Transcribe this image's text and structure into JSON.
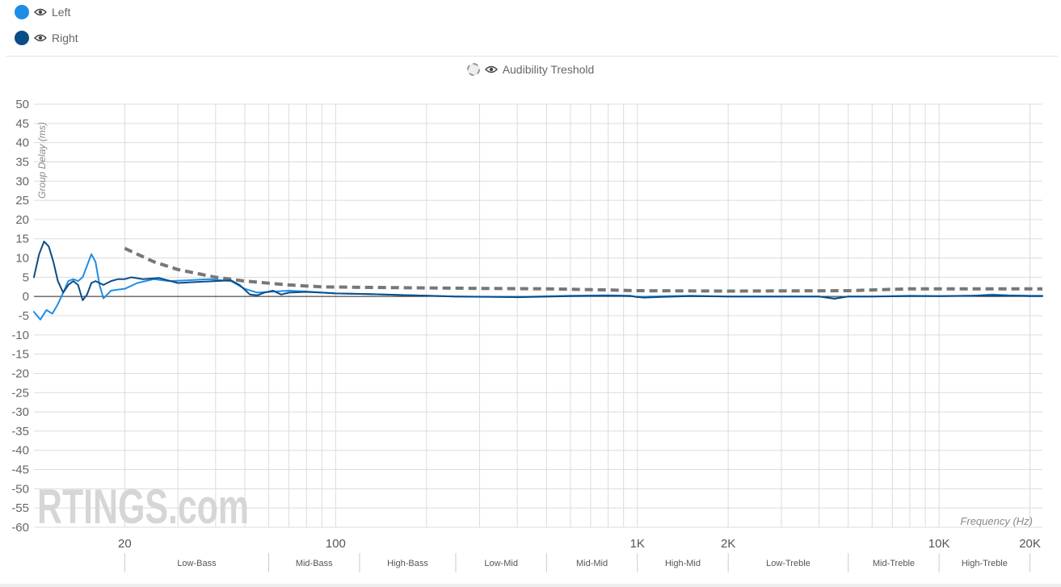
{
  "legend": {
    "items": [
      {
        "label": "Left",
        "color": "#1e8de6"
      },
      {
        "label": "Right",
        "color": "#0b4d86"
      }
    ],
    "threshold_label": "Audibility Treshold",
    "threshold_color": "#777777"
  },
  "watermark": "RTINGS.com",
  "chart_data": {
    "type": "line",
    "ylabel": "Group Delay (ms)",
    "xlabel": "Frequency (Hz)",
    "xscale": "log",
    "xlim": [
      10,
      22000
    ],
    "ylim": [
      -60,
      50
    ],
    "yticks": [
      50,
      45,
      40,
      35,
      30,
      25,
      20,
      15,
      10,
      5,
      0,
      -5,
      -10,
      -15,
      -20,
      -25,
      -30,
      -35,
      -40,
      -45,
      -50,
      -55,
      -60
    ],
    "xtick_labels": [
      {
        "label": "20",
        "value": 20
      },
      {
        "label": "100",
        "value": 100
      },
      {
        "label": "1K",
        "value": 1000
      },
      {
        "label": "2K",
        "value": 2000
      },
      {
        "label": "10K",
        "value": 10000
      },
      {
        "label": "20K",
        "value": 20000
      }
    ],
    "bands": [
      {
        "label": "Low-Bass",
        "from": 20,
        "to": 60
      },
      {
        "label": "Mid-Bass",
        "from": 60,
        "to": 120
      },
      {
        "label": "High-Bass",
        "from": 120,
        "to": 250
      },
      {
        "label": "Low-Mid",
        "from": 250,
        "to": 500
      },
      {
        "label": "Mid-Mid",
        "from": 500,
        "to": 1000
      },
      {
        "label": "High-Mid",
        "from": 1000,
        "to": 2000
      },
      {
        "label": "Low-Treble",
        "from": 2000,
        "to": 5000
      },
      {
        "label": "Mid-Treble",
        "from": 5000,
        "to": 10000
      },
      {
        "label": "High-Treble",
        "from": 10000,
        "to": 20000
      }
    ],
    "grid": true,
    "series": [
      {
        "name": "Left",
        "color": "#1e8de6",
        "points": [
          [
            10,
            -4
          ],
          [
            10.5,
            -6
          ],
          [
            11,
            -3.5
          ],
          [
            11.5,
            -4.5
          ],
          [
            12,
            -2
          ],
          [
            12.5,
            1
          ],
          [
            13,
            4
          ],
          [
            13.5,
            4.5
          ],
          [
            14,
            4
          ],
          [
            14.5,
            5
          ],
          [
            15,
            8
          ],
          [
            15.5,
            11
          ],
          [
            16,
            9
          ],
          [
            16.5,
            3
          ],
          [
            17,
            -0.5
          ],
          [
            17.5,
            0.5
          ],
          [
            18,
            1.5
          ],
          [
            19,
            1.8
          ],
          [
            20,
            2
          ],
          [
            22,
            3.5
          ],
          [
            25,
            4.5
          ],
          [
            28,
            4
          ],
          [
            32,
            4.2
          ],
          [
            38,
            4.5
          ],
          [
            45,
            4
          ],
          [
            50,
            2
          ],
          [
            55,
            1
          ],
          [
            60,
            1.2
          ],
          [
            70,
            1.5
          ],
          [
            80,
            1.3
          ],
          [
            90,
            1
          ],
          [
            100,
            0.8
          ],
          [
            130,
            0.6
          ],
          [
            180,
            0.3
          ],
          [
            250,
            0
          ],
          [
            400,
            -0.1
          ],
          [
            600,
            0.2
          ],
          [
            800,
            0.3
          ],
          [
            950,
            0.2
          ],
          [
            1000,
            -0.2
          ],
          [
            1100,
            0
          ],
          [
            1500,
            0.2
          ],
          [
            2000,
            0
          ],
          [
            3000,
            0
          ],
          [
            4000,
            0
          ],
          [
            4500,
            -0.5
          ],
          [
            5000,
            0
          ],
          [
            6000,
            0
          ],
          [
            8000,
            0.2
          ],
          [
            10000,
            0.1
          ],
          [
            13000,
            0.2
          ],
          [
            15000,
            0.5
          ],
          [
            17000,
            0.3
          ],
          [
            20000,
            0.2
          ],
          [
            22000,
            0.2
          ]
        ]
      },
      {
        "name": "Right",
        "color": "#0b4d86",
        "points": [
          [
            10,
            5
          ],
          [
            10.4,
            11
          ],
          [
            10.8,
            14.3
          ],
          [
            11.2,
            13
          ],
          [
            11.6,
            9
          ],
          [
            12,
            4
          ],
          [
            12.5,
            1
          ],
          [
            13,
            3
          ],
          [
            13.5,
            4
          ],
          [
            14,
            3
          ],
          [
            14.5,
            -1
          ],
          [
            15,
            0.5
          ],
          [
            15.5,
            3.5
          ],
          [
            16,
            4
          ],
          [
            16.5,
            3.5
          ],
          [
            17,
            3
          ],
          [
            18,
            4
          ],
          [
            19,
            4.5
          ],
          [
            20,
            4.5
          ],
          [
            21,
            5
          ],
          [
            23,
            4.5
          ],
          [
            26,
            4.8
          ],
          [
            30,
            3.5
          ],
          [
            35,
            3.8
          ],
          [
            40,
            4
          ],
          [
            45,
            4.2
          ],
          [
            48,
            3
          ],
          [
            52,
            0.5
          ],
          [
            55,
            0.3
          ],
          [
            58,
            1
          ],
          [
            62,
            1.5
          ],
          [
            66,
            0.5
          ],
          [
            70,
            1
          ],
          [
            80,
            1.2
          ],
          [
            90,
            1
          ],
          [
            100,
            0.8
          ],
          [
            130,
            0.6
          ],
          [
            180,
            0.3
          ],
          [
            250,
            0
          ],
          [
            400,
            -0.2
          ],
          [
            600,
            0.1
          ],
          [
            800,
            0.2
          ],
          [
            950,
            0.1
          ],
          [
            1050,
            -0.3
          ],
          [
            1200,
            -0.1
          ],
          [
            1500,
            0.1
          ],
          [
            2000,
            0
          ],
          [
            3000,
            0
          ],
          [
            4000,
            0
          ],
          [
            4500,
            -0.6
          ],
          [
            5000,
            0
          ],
          [
            6000,
            0
          ],
          [
            8000,
            0.1
          ],
          [
            10000,
            0.1
          ],
          [
            13000,
            0.2
          ],
          [
            15000,
            0.3
          ],
          [
            17000,
            0.2
          ],
          [
            20000,
            0.1
          ],
          [
            22000,
            0.1
          ]
        ]
      },
      {
        "name": "Audibility Treshold",
        "color": "#777777",
        "dashed": true,
        "points": [
          [
            20,
            12.5
          ],
          [
            25,
            9
          ],
          [
            30,
            7
          ],
          [
            40,
            5
          ],
          [
            50,
            4
          ],
          [
            70,
            3
          ],
          [
            90,
            2.5
          ],
          [
            150,
            2.3
          ],
          [
            300,
            2.1
          ],
          [
            500,
            2
          ],
          [
            800,
            1.7
          ],
          [
            1000,
            1.5
          ],
          [
            2000,
            1.4
          ],
          [
            5000,
            1.5
          ],
          [
            8000,
            2
          ],
          [
            10000,
            2
          ],
          [
            20000,
            2
          ],
          [
            22000,
            2
          ]
        ]
      }
    ]
  }
}
